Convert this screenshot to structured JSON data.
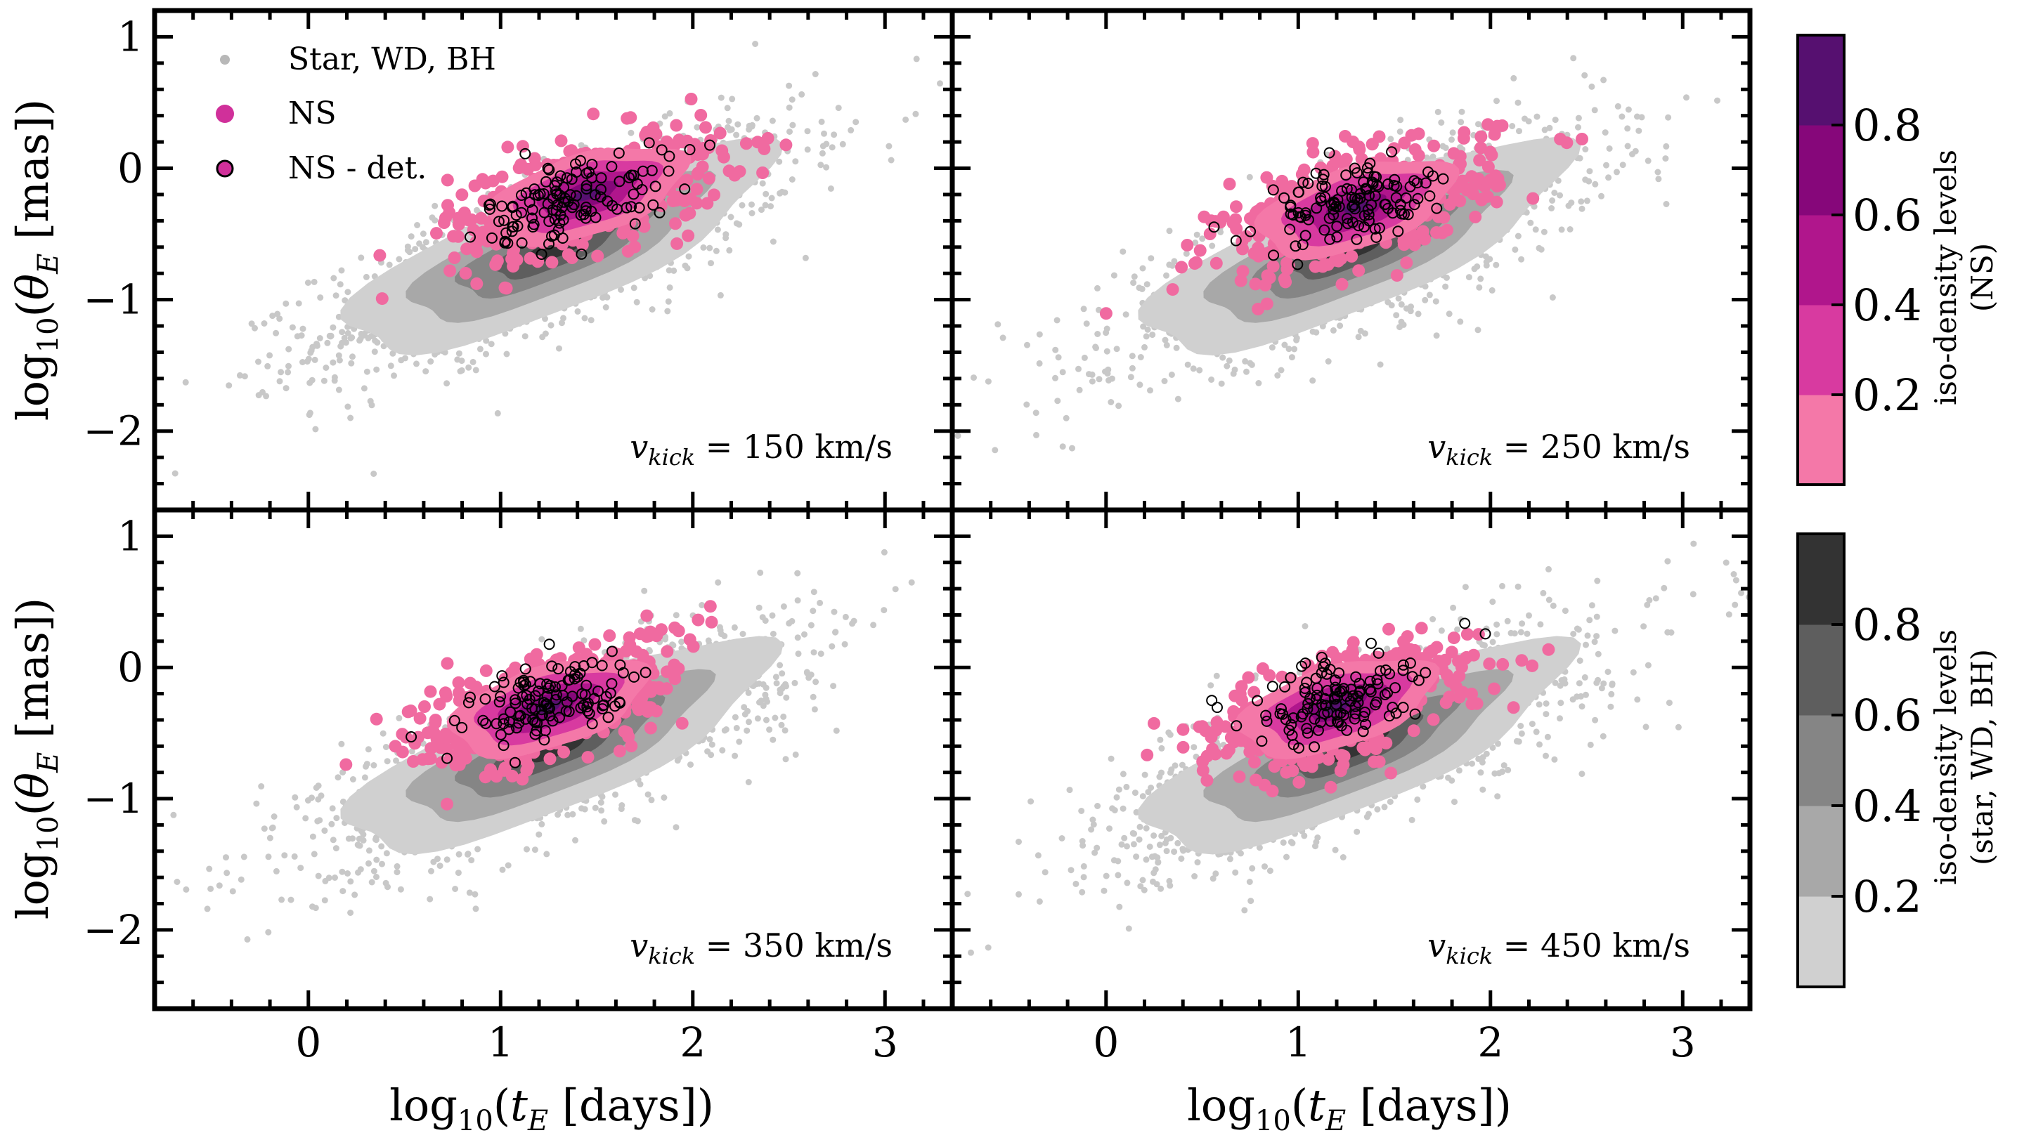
{
  "colors": {
    "background_points": "#c8c8c8",
    "ns_points": "#f06aa0",
    "ns_levels": [
      "#f478a8",
      "#d83aa0",
      "#b0168c",
      "#86077a",
      "#561070"
    ],
    "bg_levels": [
      "#d0d0d0",
      "#a8a8a8",
      "#858585",
      "#5e5e5e",
      "#333333"
    ]
  },
  "chart_data": {
    "type": "scatter",
    "xlabel": "log10(tE [days])",
    "ylabel": "log10(θE [mas])",
    "xlim": [
      -0.8,
      3.35
    ],
    "ylim": [
      -2.6,
      1.2
    ],
    "xticks": [
      "0",
      "1",
      "2",
      "3"
    ],
    "yticks": [
      "1",
      "0",
      "−1",
      "−2"
    ],
    "legend": {
      "placement": "top-left",
      "entries": [
        {
          "label": "Star, WD, BH",
          "marker": "small-gray"
        },
        {
          "label": "NS",
          "marker": "pink"
        },
        {
          "label": "NS - det.",
          "marker": "pink-outlined"
        }
      ]
    },
    "panels": [
      {
        "label": "v",
        "sub": "kick",
        "value": " = 150 km/s",
        "ns_center": [
          1.45,
          -0.2
        ],
        "det_center": [
          1.4,
          -0.22
        ],
        "bg_center": [
          1.3,
          -0.6
        ]
      },
      {
        "label": "v",
        "sub": "kick",
        "value": " = 250 km/s",
        "ns_center": [
          1.3,
          -0.3
        ],
        "det_center": [
          1.3,
          -0.25
        ],
        "bg_center": [
          1.3,
          -0.6
        ]
      },
      {
        "label": "v",
        "sub": "kick",
        "value": " = 350 km/s",
        "ns_center": [
          1.25,
          -0.3
        ],
        "det_center": [
          1.25,
          -0.25
        ],
        "bg_center": [
          1.3,
          -0.6
        ]
      },
      {
        "label": "v",
        "sub": "kick",
        "value": " = 450 km/s",
        "ns_center": [
          1.2,
          -0.3
        ],
        "det_center": [
          1.2,
          -0.25
        ],
        "bg_center": [
          1.3,
          -0.6
        ]
      }
    ],
    "colorbars": [
      {
        "label_line1": "iso-density levels",
        "label_line2": "(NS)",
        "ticks": [
          "0.8",
          "0.6",
          "0.4",
          "0.2"
        ],
        "levels": [
          0.2,
          0.4,
          0.6,
          0.8
        ]
      },
      {
        "label_line1": "iso-density levels",
        "label_line2": "(star, WD, BH)",
        "ticks": [
          "0.8",
          "0.6",
          "0.4",
          "0.2"
        ],
        "levels": [
          0.2,
          0.4,
          0.6,
          0.8
        ]
      }
    ]
  }
}
